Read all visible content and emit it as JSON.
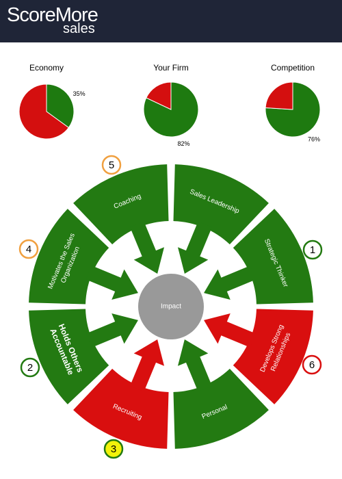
{
  "header": {
    "brand": "ScoreMore",
    "sub": "sales"
  },
  "chart_data": [
    {
      "type": "pie",
      "title": "Economy",
      "values": [
        35,
        65
      ],
      "value_labels": [
        "35%",
        null
      ],
      "colors": [
        "#1e7a10",
        "#d40f0f"
      ]
    },
    {
      "type": "pie",
      "title": "Your Firm",
      "values": [
        82,
        18
      ],
      "value_labels": [
        "82%",
        null
      ],
      "colors": [
        "#1e7a10",
        "#d40f0f"
      ]
    },
    {
      "type": "pie",
      "title": "Competition",
      "values": [
        76,
        24
      ],
      "value_labels": [
        "76%",
        null
      ],
      "colors": [
        "#1e7a10",
        "#d40f0f"
      ]
    }
  ],
  "diagram": {
    "center": "Impact",
    "segments": [
      {
        "label_lines": [
          "Sales Leadership"
        ],
        "color": "#237a12"
      },
      {
        "label_lines": [
          "Strategic Thinker"
        ],
        "color": "#237a12",
        "badge": {
          "label": "1",
          "border": "#237a12",
          "fill": "#ffffff"
        }
      },
      {
        "label_lines": [
          "Develops Strong",
          "Relationships"
        ],
        "color": "#d90f0f",
        "badge": {
          "label": "6",
          "border": "#d90f0f",
          "fill": "#ffffff"
        }
      },
      {
        "label_lines": [
          "Personal"
        ],
        "color": "#237a12"
      },
      {
        "label_lines": [
          "Recruiting"
        ],
        "color": "#d90f0f",
        "badge": {
          "label": "3",
          "border": "#237a12",
          "fill": "#f2f20a"
        }
      },
      {
        "label_lines": [
          "Holds Others",
          "Accountable"
        ],
        "color": "#237a12",
        "bold": true,
        "badge": {
          "label": "2",
          "border": "#237a12",
          "fill": "#ffffff"
        }
      },
      {
        "label_lines": [
          "Motivates the Sales",
          "Organization"
        ],
        "color": "#237a12",
        "badge": {
          "label": "4",
          "border": "#f0a040",
          "fill": "#ffffff"
        }
      },
      {
        "label_lines": [
          "Coaching"
        ],
        "color": "#237a12",
        "badge": {
          "label": "5",
          "border": "#f0a040",
          "fill": "#ffffff"
        }
      }
    ]
  }
}
